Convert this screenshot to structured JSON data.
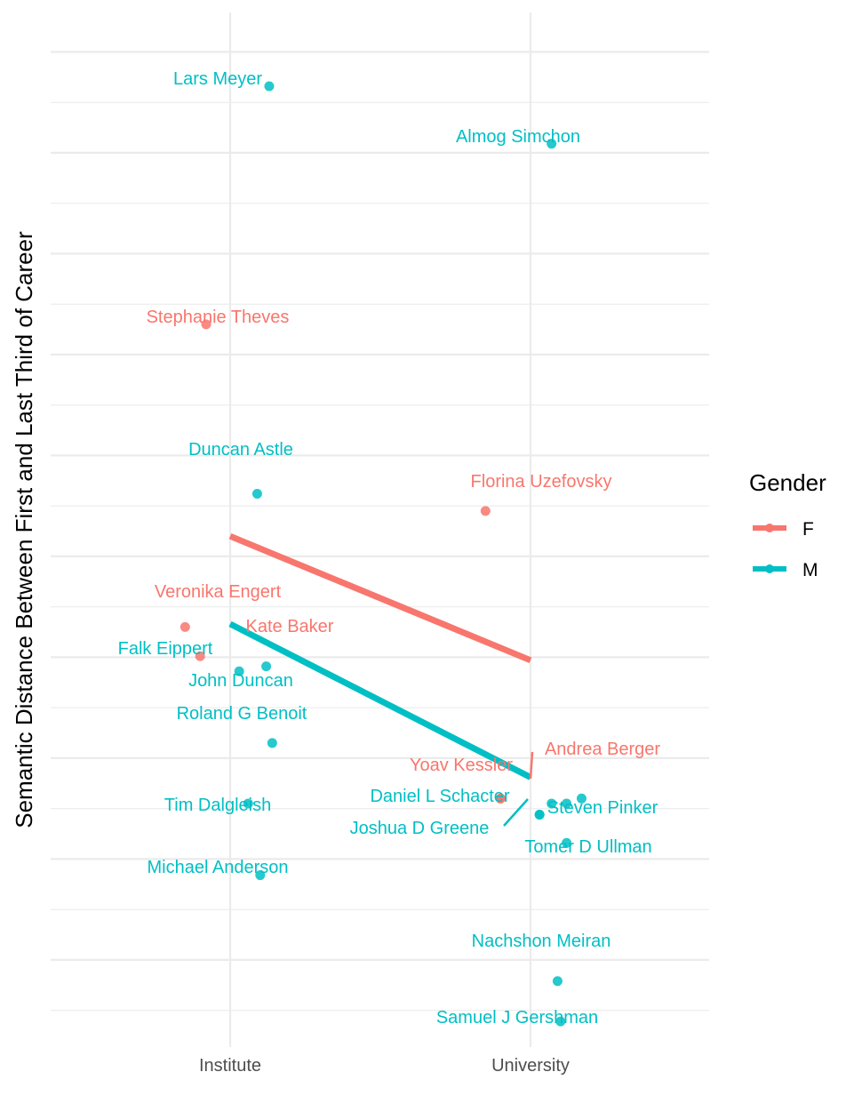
{
  "chart_data": {
    "type": "scatter",
    "title": "",
    "xlabel": "",
    "ylabel": "Semantic Distance Between First and Last Third of Career",
    "categories": [
      "Institute",
      "University"
    ],
    "ylim": [
      0,
      10.2
    ],
    "y_ticks_labeled": false,
    "grid": true,
    "legend": {
      "title": "Gender",
      "placement": "right",
      "entries": [
        {
          "label": "F",
          "color": "#F8766D"
        },
        {
          "label": "M",
          "color": "#00BFC4"
        }
      ]
    },
    "series": [
      {
        "name": "F",
        "color": "#F8766D",
        "trend": [
          {
            "x": "Institute",
            "y": 5.2
          },
          {
            "x": "University",
            "y": 3.97
          }
        ],
        "points": [
          {
            "label": "Stephanie Theves",
            "x": "Institute",
            "jitter": -0.08,
            "y": 7.3
          },
          {
            "label": "Veronika Engert",
            "x": "Institute",
            "jitter": -0.15,
            "y": 4.3
          },
          {
            "label": "Kate Baker",
            "x": "Institute",
            "jitter": -0.1,
            "y": 4.01
          },
          {
            "label": "Florina Uzefovsky",
            "x": "University",
            "jitter": -0.15,
            "y": 5.45
          },
          {
            "label": "Yoav Kessler",
            "x": "University",
            "jitter": -0.1,
            "y": 2.6
          },
          {
            "label": "Andrea Berger",
            "x": "University",
            "jitter": -0.1,
            "y": 2.6
          }
        ]
      },
      {
        "name": "M",
        "color": "#00BFC4",
        "trend": [
          {
            "x": "Institute",
            "y": 4.33
          },
          {
            "x": "University",
            "y": 2.81
          }
        ],
        "points": [
          {
            "label": "Lars Meyer",
            "x": "Institute",
            "jitter": 0.13,
            "y": 9.66
          },
          {
            "label": "Duncan Astle",
            "x": "Institute",
            "jitter": 0.09,
            "y": 5.62
          },
          {
            "label": "Falk Eippert",
            "x": "Institute",
            "jitter": 0.03,
            "y": 3.86
          },
          {
            "label": "John Duncan",
            "x": "Institute",
            "jitter": 0.12,
            "y": 3.91
          },
          {
            "label": "Roland G Benoit",
            "x": "Institute",
            "jitter": 0.14,
            "y": 3.15
          },
          {
            "label": "Tim Dalgleish",
            "x": "Institute",
            "jitter": 0.06,
            "y": 2.55
          },
          {
            "label": "Michael Anderson",
            "x": "Institute",
            "jitter": 0.1,
            "y": 1.84
          },
          {
            "label": "Almog Simchon",
            "x": "University",
            "jitter": 0.07,
            "y": 9.09
          },
          {
            "label": "Daniel L Schacter",
            "x": "University",
            "jitter": 0.03,
            "y": 2.44
          },
          {
            "label": "Joshua D Greene",
            "x": "University",
            "jitter": 0.03,
            "y": 2.44
          },
          {
            "label": "Steven Pinker",
            "x": "University",
            "jitter": 0.12,
            "y": 2.55
          },
          {
            "label": "Steven Pinker 2",
            "x": "University",
            "jitter": 0.17,
            "y": 2.6
          },
          {
            "label": "Steven Pinker 3",
            "x": "University",
            "jitter": 0.07,
            "y": 2.55
          },
          {
            "label": "Tomer D Ullman",
            "x": "University",
            "jitter": 0.12,
            "y": 2.16
          },
          {
            "label": "Nachshon Meiran",
            "x": "University",
            "jitter": 0.09,
            "y": 0.79
          },
          {
            "label": "Samuel J Gershman",
            "x": "University",
            "jitter": 0.1,
            "y": 0.39
          }
        ]
      }
    ]
  }
}
